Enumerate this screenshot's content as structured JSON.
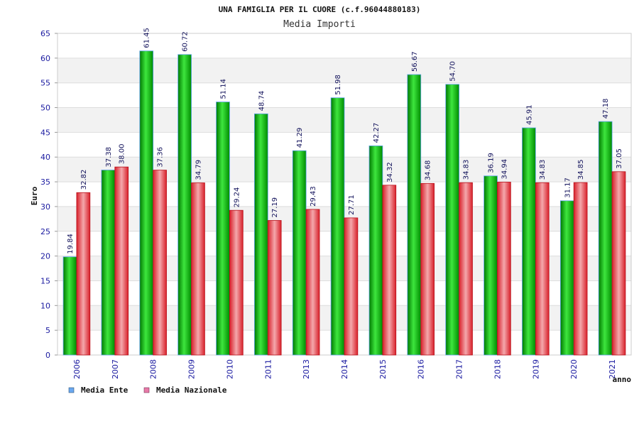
{
  "chart_data": {
    "type": "bar",
    "title": "UNA FAMIGLIA PER IL CUORE (c.f.96044880183)",
    "subtitle": "Media Importi",
    "xlabel": "anno",
    "ylabel": "Euro",
    "ylim": [
      0,
      65
    ],
    "ytick_step": 5,
    "grid": true,
    "legend_position": "bottom-left",
    "categories": [
      "2006",
      "2007",
      "2008",
      "2009",
      "2010",
      "2011",
      "2013",
      "2014",
      "2015",
      "2016",
      "2017",
      "2018",
      "2019",
      "2020",
      "2021"
    ],
    "series": [
      {
        "name": "Media Ente",
        "color": "#00b400",
        "legend_color": "#6aa8f0",
        "values": [
          19.84,
          37.38,
          61.45,
          60.72,
          51.14,
          48.74,
          41.29,
          51.98,
          42.27,
          56.67,
          54.7,
          36.19,
          45.91,
          31.17,
          47.18
        ],
        "labels": [
          "19.84",
          "37.38",
          "61.45",
          "60.72",
          "51.14",
          "48.74",
          "41.29",
          "51.98",
          "42.27",
          "56.67",
          "54.70",
          "36.19",
          "45.91",
          "31.17",
          "47.18"
        ]
      },
      {
        "name": "Media Nazionale",
        "color": "#e8323c",
        "legend_color": "#e87aa8",
        "values": [
          32.82,
          38.0,
          37.36,
          34.79,
          29.24,
          27.19,
          29.43,
          27.71,
          34.32,
          34.68,
          34.83,
          34.94,
          34.83,
          34.85,
          37.05
        ],
        "labels": [
          "32.82",
          "38.00",
          "37.36",
          "34.79",
          "29.24",
          "27.19",
          "29.43",
          "27.71",
          "34.32",
          "34.68",
          "34.83",
          "34.94",
          "34.83",
          "34.85",
          "37.05"
        ]
      }
    ]
  }
}
